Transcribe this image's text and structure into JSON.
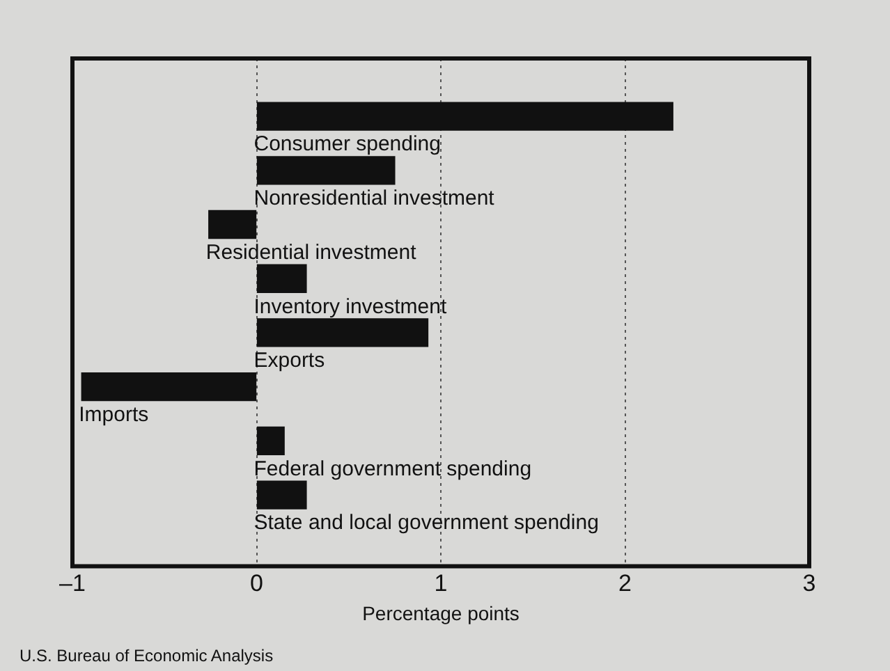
{
  "chart_data": {
    "type": "bar",
    "orientation": "horizontal",
    "xlabel": "Percentage points",
    "categories": [
      "Consumer spending",
      "Nonresidential investment",
      "Residential investment",
      "Inventory investment",
      "Exports",
      "Imports",
      "Federal government spending",
      "State and local government spending"
    ],
    "values": [
      2.26,
      0.75,
      -0.26,
      0.27,
      0.93,
      -0.95,
      0.15,
      0.27
    ],
    "color": "#111111",
    "xlim": [
      -1,
      3
    ],
    "xticks": [
      {
        "value": -1,
        "label": "–1"
      },
      0,
      1,
      2,
      3
    ],
    "grid": "x",
    "legend": false,
    "annotations": [
      "U.S. Bureau of Economic Analysis"
    ]
  }
}
